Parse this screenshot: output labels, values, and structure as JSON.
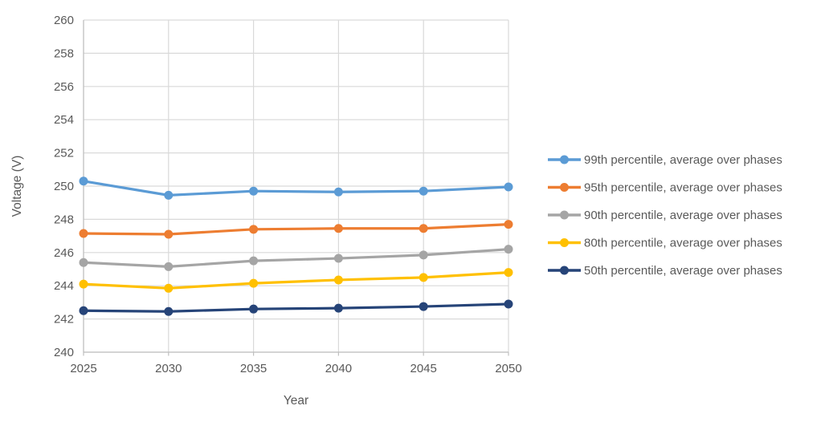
{
  "chart_data": {
    "type": "line",
    "title": "",
    "xlabel": "Year",
    "ylabel": "Voltage (V)",
    "x": [
      "2025",
      "2030",
      "2035",
      "2040",
      "2045",
      "2050"
    ],
    "yticks": [
      "240",
      "242",
      "244",
      "246",
      "248",
      "250",
      "252",
      "254",
      "256",
      "258",
      "260"
    ],
    "ylim": [
      240,
      260
    ],
    "grid": true,
    "legend_position": "right",
    "colors": {
      "text": "#595959",
      "gridline": "#D9D9D9",
      "axis": "#BFBFBF",
      "background": "#FFFFFF"
    },
    "series": [
      {
        "name": "99th percentile, average over phases",
        "slug": "99th-percentile",
        "color": "#5B9BD5",
        "values": [
          250.3,
          249.45,
          249.7,
          249.65,
          249.7,
          249.95
        ]
      },
      {
        "name": "95th percentile, average over phases",
        "slug": "95th-percentile",
        "color": "#ED7D31",
        "values": [
          247.15,
          247.1,
          247.4,
          247.45,
          247.45,
          247.7
        ]
      },
      {
        "name": "90th percentile, average over phases",
        "slug": "90th-percentile",
        "color": "#A5A5A5",
        "values": [
          245.4,
          245.15,
          245.5,
          245.65,
          245.85,
          246.2
        ]
      },
      {
        "name": "80th percentile, average over phases",
        "slug": "80th-percentile",
        "color": "#FFC000",
        "values": [
          244.1,
          243.85,
          244.15,
          244.35,
          244.5,
          244.8
        ]
      },
      {
        "name": "50th percentile, average over phases",
        "slug": "50th-percentile",
        "color": "#264478",
        "values": [
          242.5,
          242.45,
          242.6,
          242.65,
          242.75,
          242.9
        ]
      }
    ]
  }
}
